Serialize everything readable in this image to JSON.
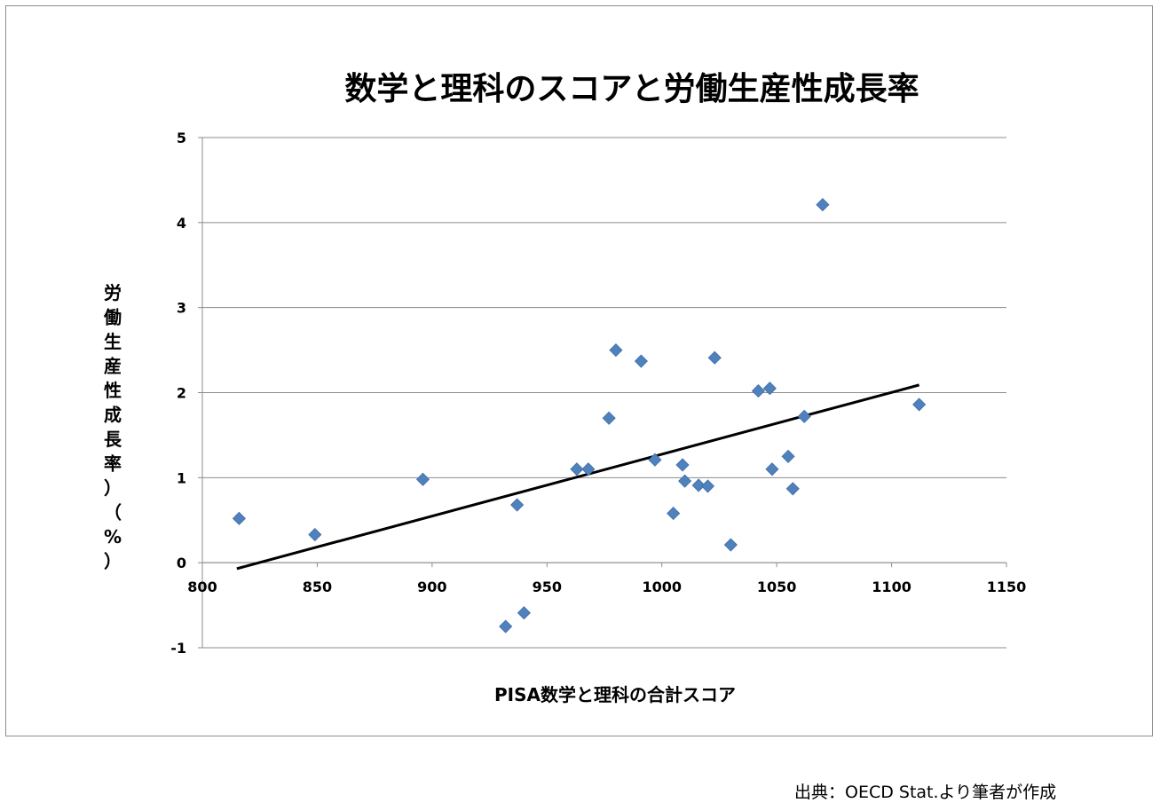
{
  "chart_data": {
    "type": "scatter",
    "title": "数学と理科のスコアと労働生産性成長率",
    "xlabel": "PISA数学と理科の合計スコア",
    "ylabel_chars": [
      "労",
      "働",
      "生",
      "産",
      "性",
      "成",
      "長",
      "率",
      "）",
      "（",
      "%",
      "）"
    ],
    "xlim": [
      800,
      1150
    ],
    "ylim": [
      -1,
      5
    ],
    "x_ticks": [
      800,
      850,
      900,
      950,
      1000,
      1050,
      1100,
      1150
    ],
    "y_ticks": [
      -1,
      0,
      1,
      2,
      3,
      4,
      5
    ],
    "grid": "horizontal",
    "marker": "diamond",
    "marker_color": "#4F81BD",
    "trendline_color": "#000000",
    "points": [
      {
        "x": 816,
        "y": 0.52
      },
      {
        "x": 849,
        "y": 0.33
      },
      {
        "x": 896,
        "y": 0.98
      },
      {
        "x": 932,
        "y": -0.75
      },
      {
        "x": 937,
        "y": 0.68
      },
      {
        "x": 940,
        "y": -0.59
      },
      {
        "x": 963,
        "y": 1.1
      },
      {
        "x": 968,
        "y": 1.1
      },
      {
        "x": 977,
        "y": 1.7
      },
      {
        "x": 980,
        "y": 2.5
      },
      {
        "x": 991,
        "y": 2.37
      },
      {
        "x": 997,
        "y": 1.21
      },
      {
        "x": 1005,
        "y": 0.58
      },
      {
        "x": 1009,
        "y": 1.15
      },
      {
        "x": 1010,
        "y": 0.96
      },
      {
        "x": 1016,
        "y": 0.91
      },
      {
        "x": 1020,
        "y": 0.9
      },
      {
        "x": 1023,
        "y": 2.41
      },
      {
        "x": 1030,
        "y": 0.21
      },
      {
        "x": 1042,
        "y": 2.02
      },
      {
        "x": 1047,
        "y": 2.05
      },
      {
        "x": 1048,
        "y": 1.1
      },
      {
        "x": 1055,
        "y": 1.25
      },
      {
        "x": 1057,
        "y": 0.87
      },
      {
        "x": 1062,
        "y": 1.72
      },
      {
        "x": 1070,
        "y": 4.21
      },
      {
        "x": 1112,
        "y": 1.86
      }
    ],
    "trendline": [
      {
        "x": 815,
        "y": -0.07
      },
      {
        "x": 1112,
        "y": 2.09
      }
    ]
  },
  "source": "出典：OECD Stat.より筆者が作成"
}
